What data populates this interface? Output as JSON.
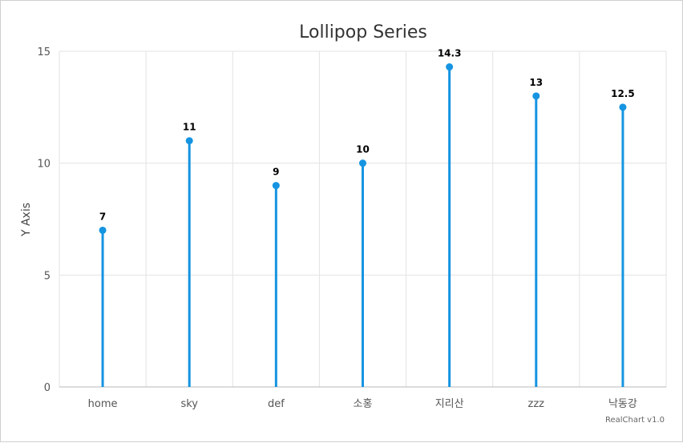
{
  "chart_data": {
    "type": "lollipop",
    "title": "Lollipop Series",
    "xlabel": "",
    "ylabel": "Y Axis",
    "categories": [
      "home",
      "sky",
      "def",
      "소홍",
      "지리산",
      "zzz",
      "낙동강"
    ],
    "values": [
      7,
      11,
      9,
      10,
      14.3,
      13,
      12.5
    ],
    "data_labels": [
      "7",
      "11",
      "9",
      "10",
      "14.3",
      "13",
      "12.5"
    ],
    "ylim": [
      0,
      15
    ],
    "yticks": [
      "0",
      "5",
      "10",
      "15"
    ],
    "grid": true,
    "color": "#1594e1"
  },
  "credit": "RealChart v1.0"
}
